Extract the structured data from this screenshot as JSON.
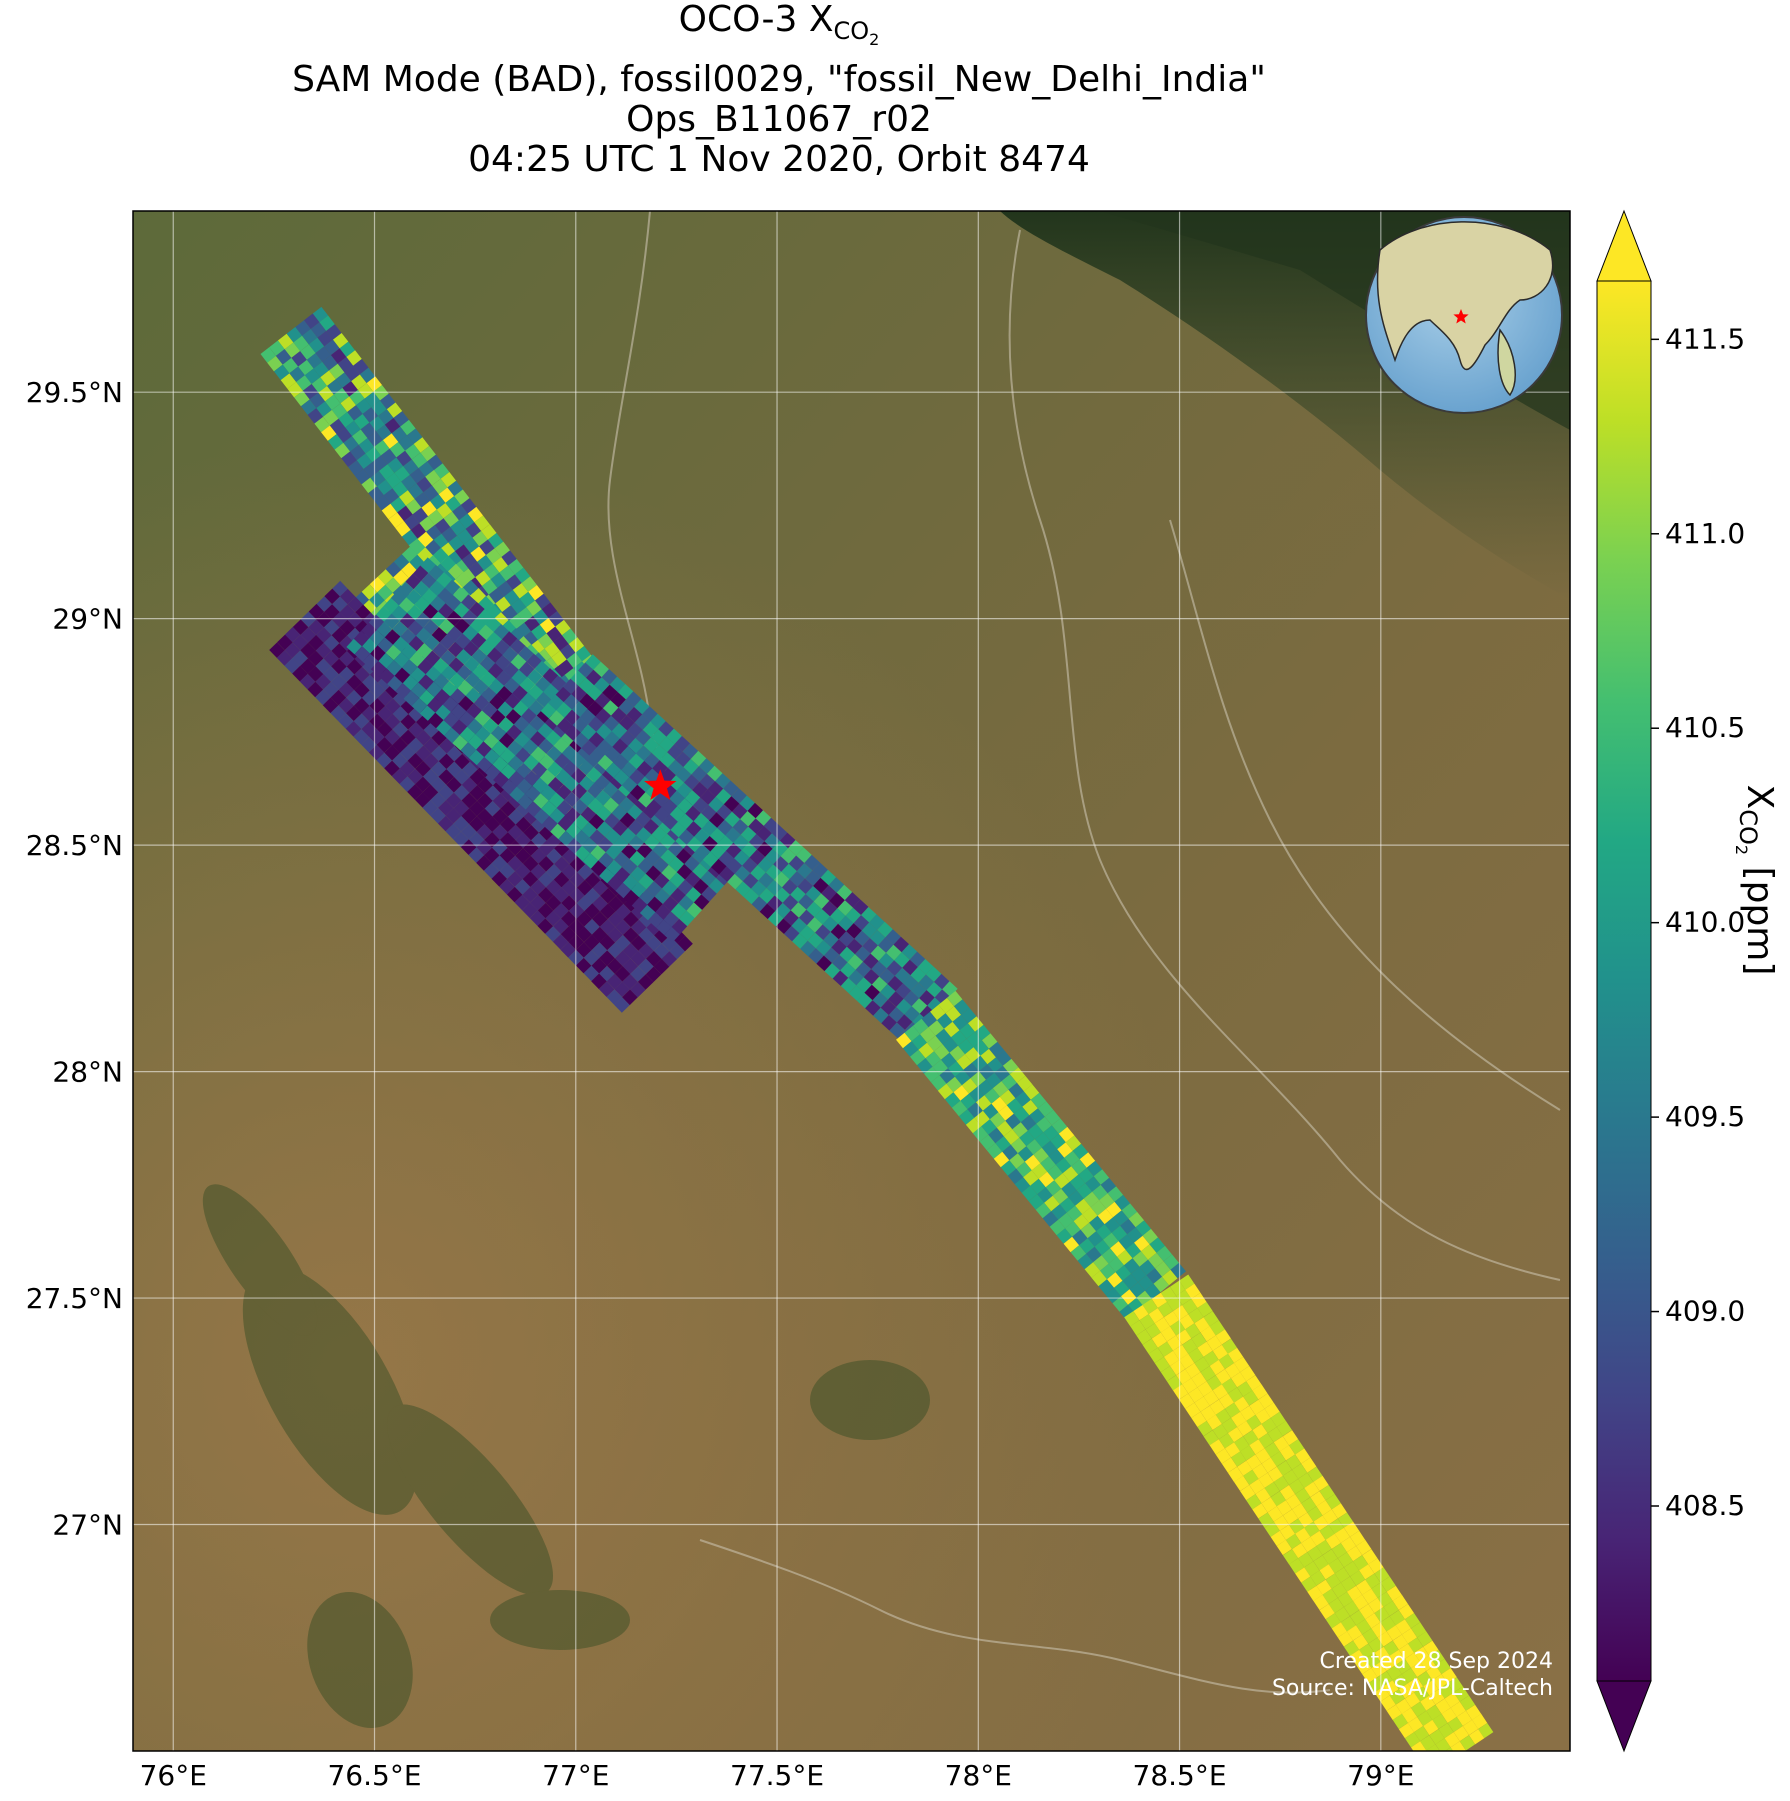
{
  "title": {
    "line1_prefix": "OCO-3 X",
    "line1_sub": "CO",
    "line1_sub2": "2",
    "line2": "SAM Mode (BAD), fossil0029, \"fossil_New_Delhi_India\"",
    "line3": "Ops_B11067_r02",
    "line4": "04:25 UTC 1 Nov 2020, Orbit 8474"
  },
  "map": {
    "lon_ticks": [
      "76°E",
      "76.5°E",
      "77°E",
      "77.5°E",
      "78°E",
      "78.5°E",
      "79°E"
    ],
    "lat_ticks": [
      "29.5°N",
      "29°N",
      "28.5°N",
      "28°N",
      "27.5°N",
      "27°N"
    ],
    "lon_values": [
      76.0,
      76.5,
      77.0,
      77.5,
      78.0,
      78.5,
      79.0
    ],
    "lat_values": [
      29.5,
      29.0,
      28.5,
      28.0,
      27.5,
      27.0
    ],
    "lon_range": [
      75.9,
      79.47
    ],
    "lat_range": [
      26.5,
      29.9
    ],
    "target": {
      "name": "fossil_New_Delhi_India",
      "lon": 77.21,
      "lat": 28.63,
      "marker": "star-icon",
      "color": "#ff0000"
    },
    "gridlines": true,
    "background": "satellite imagery"
  },
  "colorbar": {
    "label_prefix": "X",
    "label_sub": "CO",
    "label_sub2": "2",
    "label_suffix": " [ppm]",
    "ticks": [
      "408.5",
      "409.0",
      "409.5",
      "410.0",
      "410.5",
      "411.0",
      "411.5"
    ],
    "tick_values": [
      408.5,
      409.0,
      409.5,
      410.0,
      410.5,
      411.0,
      411.5
    ],
    "range": [
      408.05,
      411.65
    ],
    "colormap": "viridis",
    "extend": "both"
  },
  "inset": {
    "type": "globe",
    "marker": "star-icon",
    "color": "#ff0000"
  },
  "credits": {
    "created": "Created 28 Sep 2024",
    "source": "Source: NASA/JPL-Caltech"
  }
}
